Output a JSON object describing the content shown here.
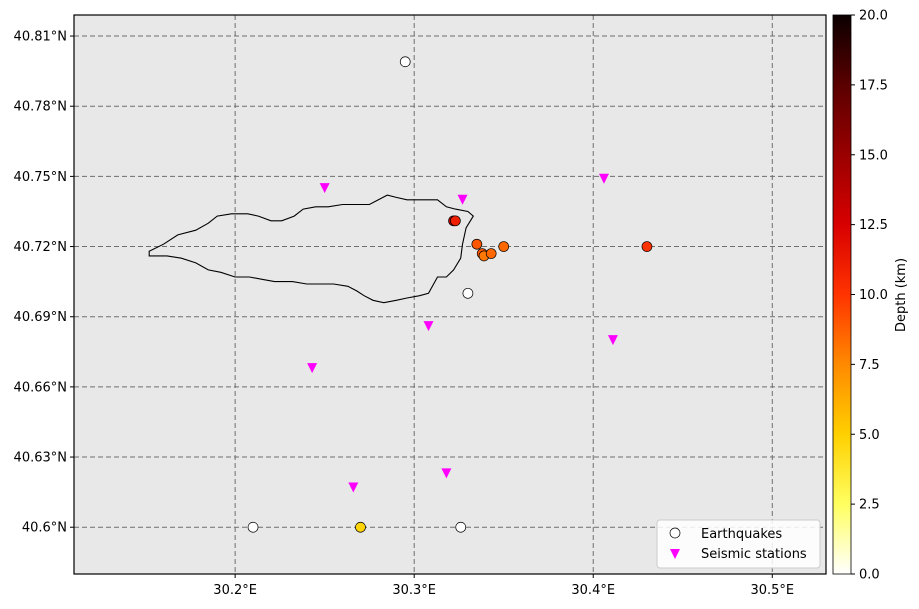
{
  "chart_data": {
    "type": "scatter",
    "xlim": [
      30.11,
      30.53
    ],
    "ylim": [
      40.58,
      40.819
    ],
    "x_ticks": [
      {
        "value": 30.2,
        "label": "30.2°E"
      },
      {
        "value": 30.3,
        "label": "30.3°E"
      },
      {
        "value": 30.4,
        "label": "30.4°E"
      },
      {
        "value": 30.5,
        "label": "30.5°E"
      }
    ],
    "y_ticks": [
      {
        "value": 40.6,
        "label": "40.6°N"
      },
      {
        "value": 40.63,
        "label": "40.63°N"
      },
      {
        "value": 40.66,
        "label": "40.66°N"
      },
      {
        "value": 40.69,
        "label": "40.69°N"
      },
      {
        "value": 40.72,
        "label": "40.72°N"
      },
      {
        "value": 40.75,
        "label": "40.75°N"
      },
      {
        "value": 40.78,
        "label": "40.78°N"
      },
      {
        "value": 40.81,
        "label": "40.81°N"
      }
    ],
    "grid": true,
    "background_color": "#e8e8e8",
    "grid_color": "#6e6e6e",
    "lake_outline": [
      [
        30.152,
        40.718
      ],
      [
        30.16,
        40.721
      ],
      [
        30.168,
        40.725
      ],
      [
        30.178,
        40.727
      ],
      [
        30.185,
        40.73
      ],
      [
        30.19,
        40.733
      ],
      [
        30.198,
        40.734
      ],
      [
        30.207,
        40.734
      ],
      [
        30.213,
        40.733
      ],
      [
        30.22,
        40.731
      ],
      [
        30.226,
        40.731
      ],
      [
        30.233,
        40.733
      ],
      [
        30.238,
        40.736
      ],
      [
        30.245,
        40.737
      ],
      [
        30.252,
        40.737
      ],
      [
        30.26,
        40.738
      ],
      [
        30.267,
        40.738
      ],
      [
        30.275,
        40.738
      ],
      [
        30.28,
        40.74
      ],
      [
        30.285,
        40.742
      ],
      [
        30.29,
        40.741
      ],
      [
        30.296,
        40.74
      ],
      [
        30.303,
        40.74
      ],
      [
        30.31,
        40.74
      ],
      [
        30.313,
        40.74
      ],
      [
        30.318,
        40.737
      ],
      [
        30.323,
        40.736
      ],
      [
        30.33,
        40.735
      ],
      [
        30.333,
        40.733
      ],
      [
        30.329,
        40.728
      ],
      [
        30.327,
        40.721
      ],
      [
        30.326,
        40.715
      ],
      [
        30.322,
        40.71
      ],
      [
        30.318,
        40.707
      ],
      [
        30.313,
        40.707
      ],
      [
        30.308,
        40.7
      ],
      [
        30.303,
        40.699
      ],
      [
        30.296,
        40.698
      ],
      [
        30.29,
        40.697
      ],
      [
        30.283,
        40.696
      ],
      [
        30.277,
        40.697
      ],
      [
        30.272,
        40.699
      ],
      [
        30.268,
        40.701
      ],
      [
        30.263,
        40.703
      ],
      [
        30.255,
        40.704
      ],
      [
        30.248,
        40.704
      ],
      [
        30.24,
        40.704
      ],
      [
        30.232,
        40.705
      ],
      [
        30.222,
        40.705
      ],
      [
        30.215,
        40.706
      ],
      [
        30.208,
        40.707
      ],
      [
        30.2,
        40.707
      ],
      [
        30.192,
        40.709
      ],
      [
        30.185,
        40.71
      ],
      [
        30.178,
        40.713
      ],
      [
        30.17,
        40.715
      ],
      [
        30.162,
        40.716
      ],
      [
        30.152,
        40.716
      ]
    ],
    "earthquakes": [
      {
        "lon": 30.295,
        "lat": 40.799,
        "depth": null
      },
      {
        "lon": 30.33,
        "lat": 40.7,
        "depth": null
      },
      {
        "lon": 30.21,
        "lat": 40.6,
        "depth": null
      },
      {
        "lon": 30.326,
        "lat": 40.6,
        "depth": null
      },
      {
        "lon": 30.27,
        "lat": 40.6,
        "depth": 4.8
      },
      {
        "lon": 30.322,
        "lat": 40.731,
        "depth": 13.0
      },
      {
        "lon": 30.323,
        "lat": 40.731,
        "depth": 11.0
      },
      {
        "lon": 30.335,
        "lat": 40.721,
        "depth": 9.0
      },
      {
        "lon": 30.338,
        "lat": 40.717,
        "depth": 9.0
      },
      {
        "lon": 30.339,
        "lat": 40.716,
        "depth": 8.0
      },
      {
        "lon": 30.343,
        "lat": 40.717,
        "depth": 8.5
      },
      {
        "lon": 30.35,
        "lat": 40.72,
        "depth": 8.5
      },
      {
        "lon": 30.43,
        "lat": 40.72,
        "depth": 10.0
      }
    ],
    "stations": [
      {
        "lon": 30.25,
        "lat": 40.745
      },
      {
        "lon": 30.327,
        "lat": 40.74
      },
      {
        "lon": 30.406,
        "lat": 40.749
      },
      {
        "lon": 30.308,
        "lat": 40.686
      },
      {
        "lon": 30.411,
        "lat": 40.68
      },
      {
        "lon": 30.243,
        "lat": 40.668
      },
      {
        "lon": 30.318,
        "lat": 40.623
      },
      {
        "lon": 30.266,
        "lat": 40.617
      }
    ],
    "station_color": "#ff00ff",
    "legend": {
      "placement": "lower-right",
      "entries": [
        {
          "label": "Earthquakes",
          "marker": "circle"
        },
        {
          "label": "Seismic stations",
          "marker": "triangle-down"
        }
      ]
    },
    "colorbar": {
      "label": "Depth (km)",
      "min": 0,
      "max": 20,
      "colormap": "hot_r",
      "ticks": [
        {
          "value": 0.0,
          "label": "0.0"
        },
        {
          "value": 2.5,
          "label": "2.5"
        },
        {
          "value": 5.0,
          "label": "5.0"
        },
        {
          "value": 7.5,
          "label": "7.5"
        },
        {
          "value": 10.0,
          "label": "10.0"
        },
        {
          "value": 12.5,
          "label": "12.5"
        },
        {
          "value": 15.0,
          "label": "15.0"
        },
        {
          "value": 17.5,
          "label": "17.5"
        },
        {
          "value": 20.0,
          "label": "20.0"
        }
      ]
    }
  }
}
